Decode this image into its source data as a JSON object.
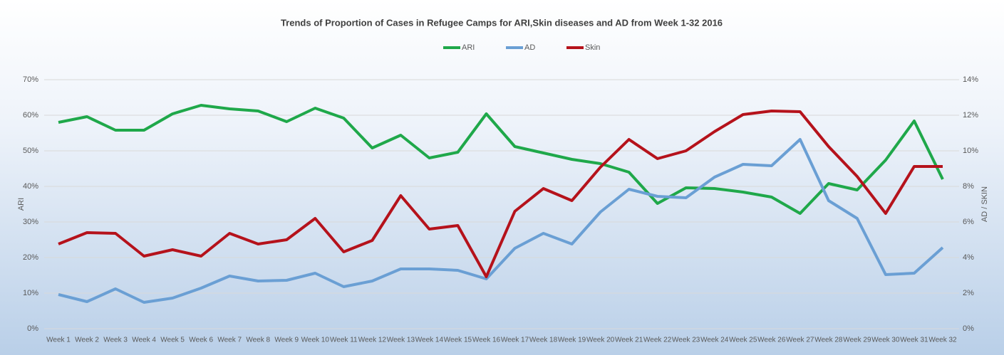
{
  "chart_data": {
    "type": "line",
    "title": "Trends of Proportion of Cases in Refugee Camps for ARI,Skin diseases and AD from Week 1-32 2016",
    "y_label": "ARI",
    "y2_label": "AD / SKIN",
    "grid": true,
    "categories": [
      "Week 1",
      "Week 2",
      "Week 3",
      "Week 4",
      "Week 5",
      "Week 6",
      "Week 7",
      "Week 8",
      "Week 9",
      "Week 10",
      "Week 11",
      "Week 12",
      "Week 13",
      "Week 14",
      "Week 15",
      "Week 16",
      "Week 17",
      "Week 18",
      "Week 19",
      "Week 20",
      "Week 21",
      "Week 22",
      "Week 23",
      "Week 24",
      "Week 25",
      "Week 26",
      "Week 27",
      "Week 28",
      "Week 29",
      "Week 30",
      "Week 31",
      "Week 32"
    ],
    "ylim": [
      0,
      70
    ],
    "yticks": [
      {
        "value": 0,
        "label": "0%"
      },
      {
        "value": 10,
        "label": "10%"
      },
      {
        "value": 20,
        "label": "20%"
      },
      {
        "value": 30,
        "label": "30%"
      },
      {
        "value": 40,
        "label": "40%"
      },
      {
        "value": 50,
        "label": "50%"
      },
      {
        "value": 60,
        "label": "60%"
      },
      {
        "value": 70,
        "label": "70%"
      }
    ],
    "y2lim": [
      0,
      14
    ],
    "y2ticks": [
      {
        "value": 0,
        "label": "0%"
      },
      {
        "value": 2,
        "label": "2%"
      },
      {
        "value": 4,
        "label": "4%"
      },
      {
        "value": 6,
        "label": "6%"
      },
      {
        "value": 8,
        "label": "8%"
      },
      {
        "value": 10,
        "label": "10%"
      },
      {
        "value": 12,
        "label": "12%"
      },
      {
        "value": 14,
        "label": "14%"
      }
    ],
    "series": [
      {
        "name": "ARI",
        "color": "#1fa84a",
        "values": [
          58,
          59.6,
          55.8,
          55.8,
          60.4,
          62.8,
          61.8,
          61.2,
          58.2,
          62,
          59.2,
          50.8,
          54.4,
          48,
          49.6,
          60.4,
          51.2,
          49.4,
          47.6,
          46.4,
          44,
          35.2,
          39.6,
          39.4,
          38.4,
          37,
          32.4,
          40.8,
          39,
          47.4,
          58.4,
          42
        ]
      },
      {
        "name": "AD",
        "color": "#6a9fd4",
        "axis": "y2",
        "values": [
          1.92,
          1.52,
          2.24,
          1.48,
          1.72,
          2.28,
          2.96,
          2.68,
          2.72,
          3.12,
          2.36,
          2.68,
          3.36,
          3.36,
          3.28,
          2.8,
          4.52,
          5.36,
          4.76,
          6.56,
          7.84,
          7.44,
          7.36,
          8.52,
          9.24,
          9.16,
          10.64,
          7.2,
          6.2,
          3.04,
          3.12,
          4.56
        ]
      },
      {
        "name": "Skin",
        "color": "#b5121b",
        "axis": "y2",
        "values": [
          4.76,
          5.4,
          5.36,
          4.08,
          4.44,
          4.08,
          5.36,
          4.76,
          5,
          6.2,
          4.32,
          4.96,
          7.48,
          5.6,
          5.8,
          2.92,
          6.6,
          7.88,
          7.2,
          9.08,
          10.64,
          9.56,
          10,
          11.08,
          12.04,
          12.24,
          12.2,
          10.24,
          8.56,
          6.48,
          9.12,
          9.12
        ]
      }
    ]
  }
}
